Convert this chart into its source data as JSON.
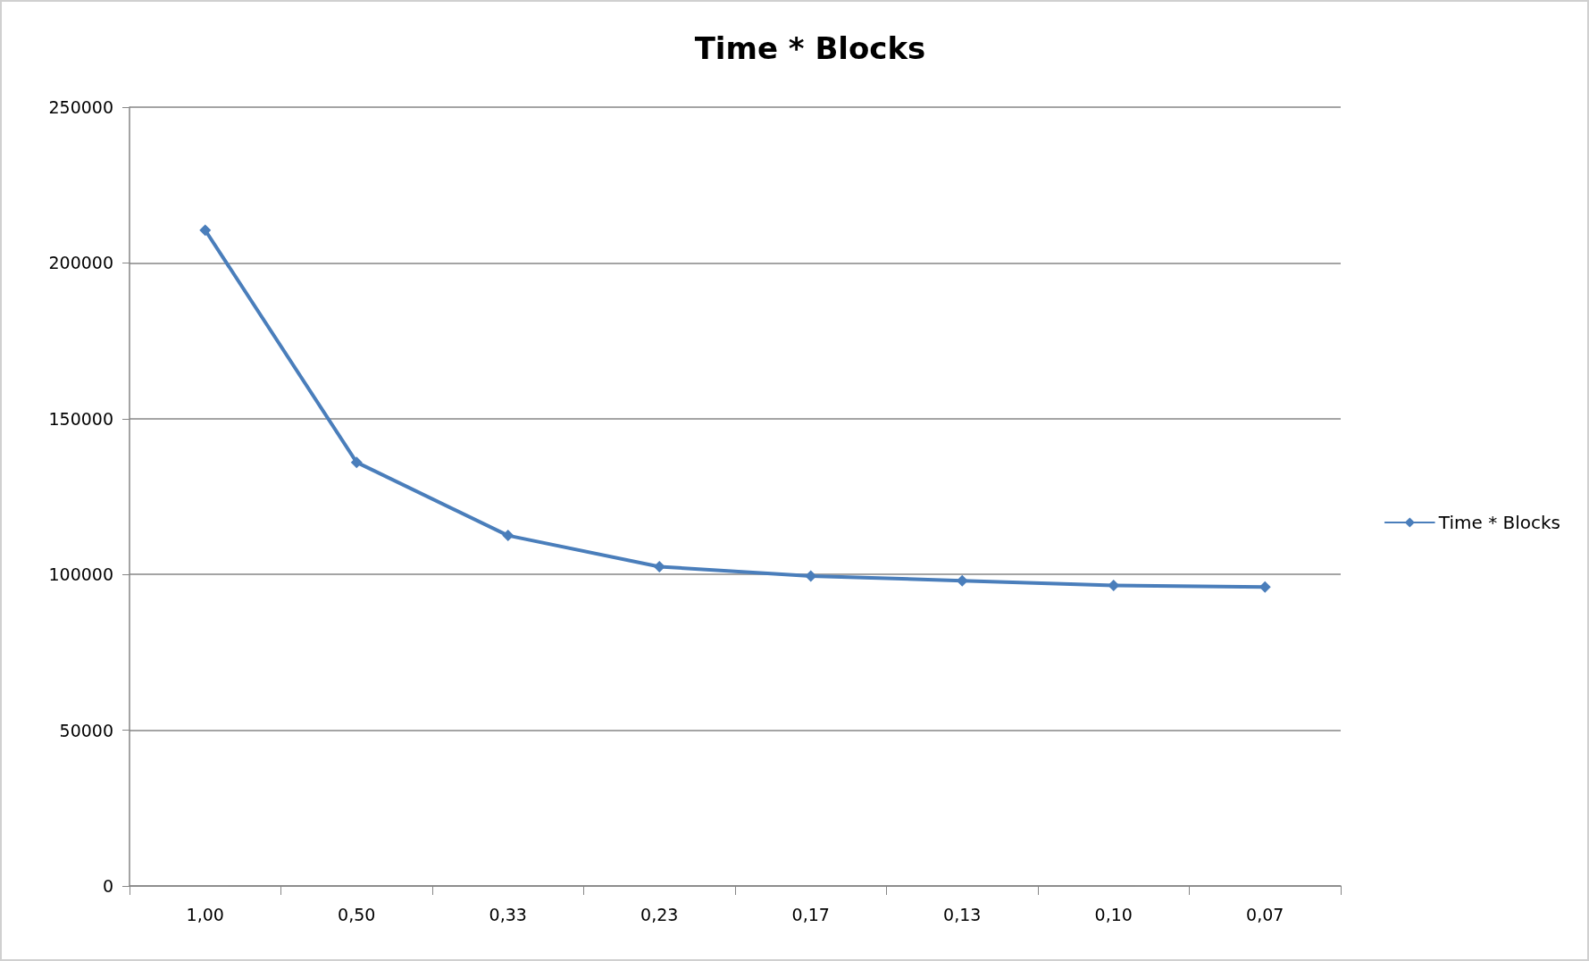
{
  "chart_data": {
    "type": "line",
    "title": "Time * Blocks",
    "categories": [
      "1,00",
      "0,50",
      "0,33",
      "0,23",
      "0,17",
      "0,13",
      "0,10",
      "0,07"
    ],
    "series": [
      {
        "name": "Time * Blocks",
        "color": "#4a7ebb",
        "values": [
          210500,
          136000,
          112500,
          102500,
          99500,
          98000,
          96500,
          96000
        ]
      }
    ],
    "ylim": [
      0,
      250000
    ],
    "yticks": [
      0,
      50000,
      100000,
      150000,
      200000,
      250000
    ],
    "grid": "y",
    "legend": "right",
    "marker": "diamond"
  }
}
